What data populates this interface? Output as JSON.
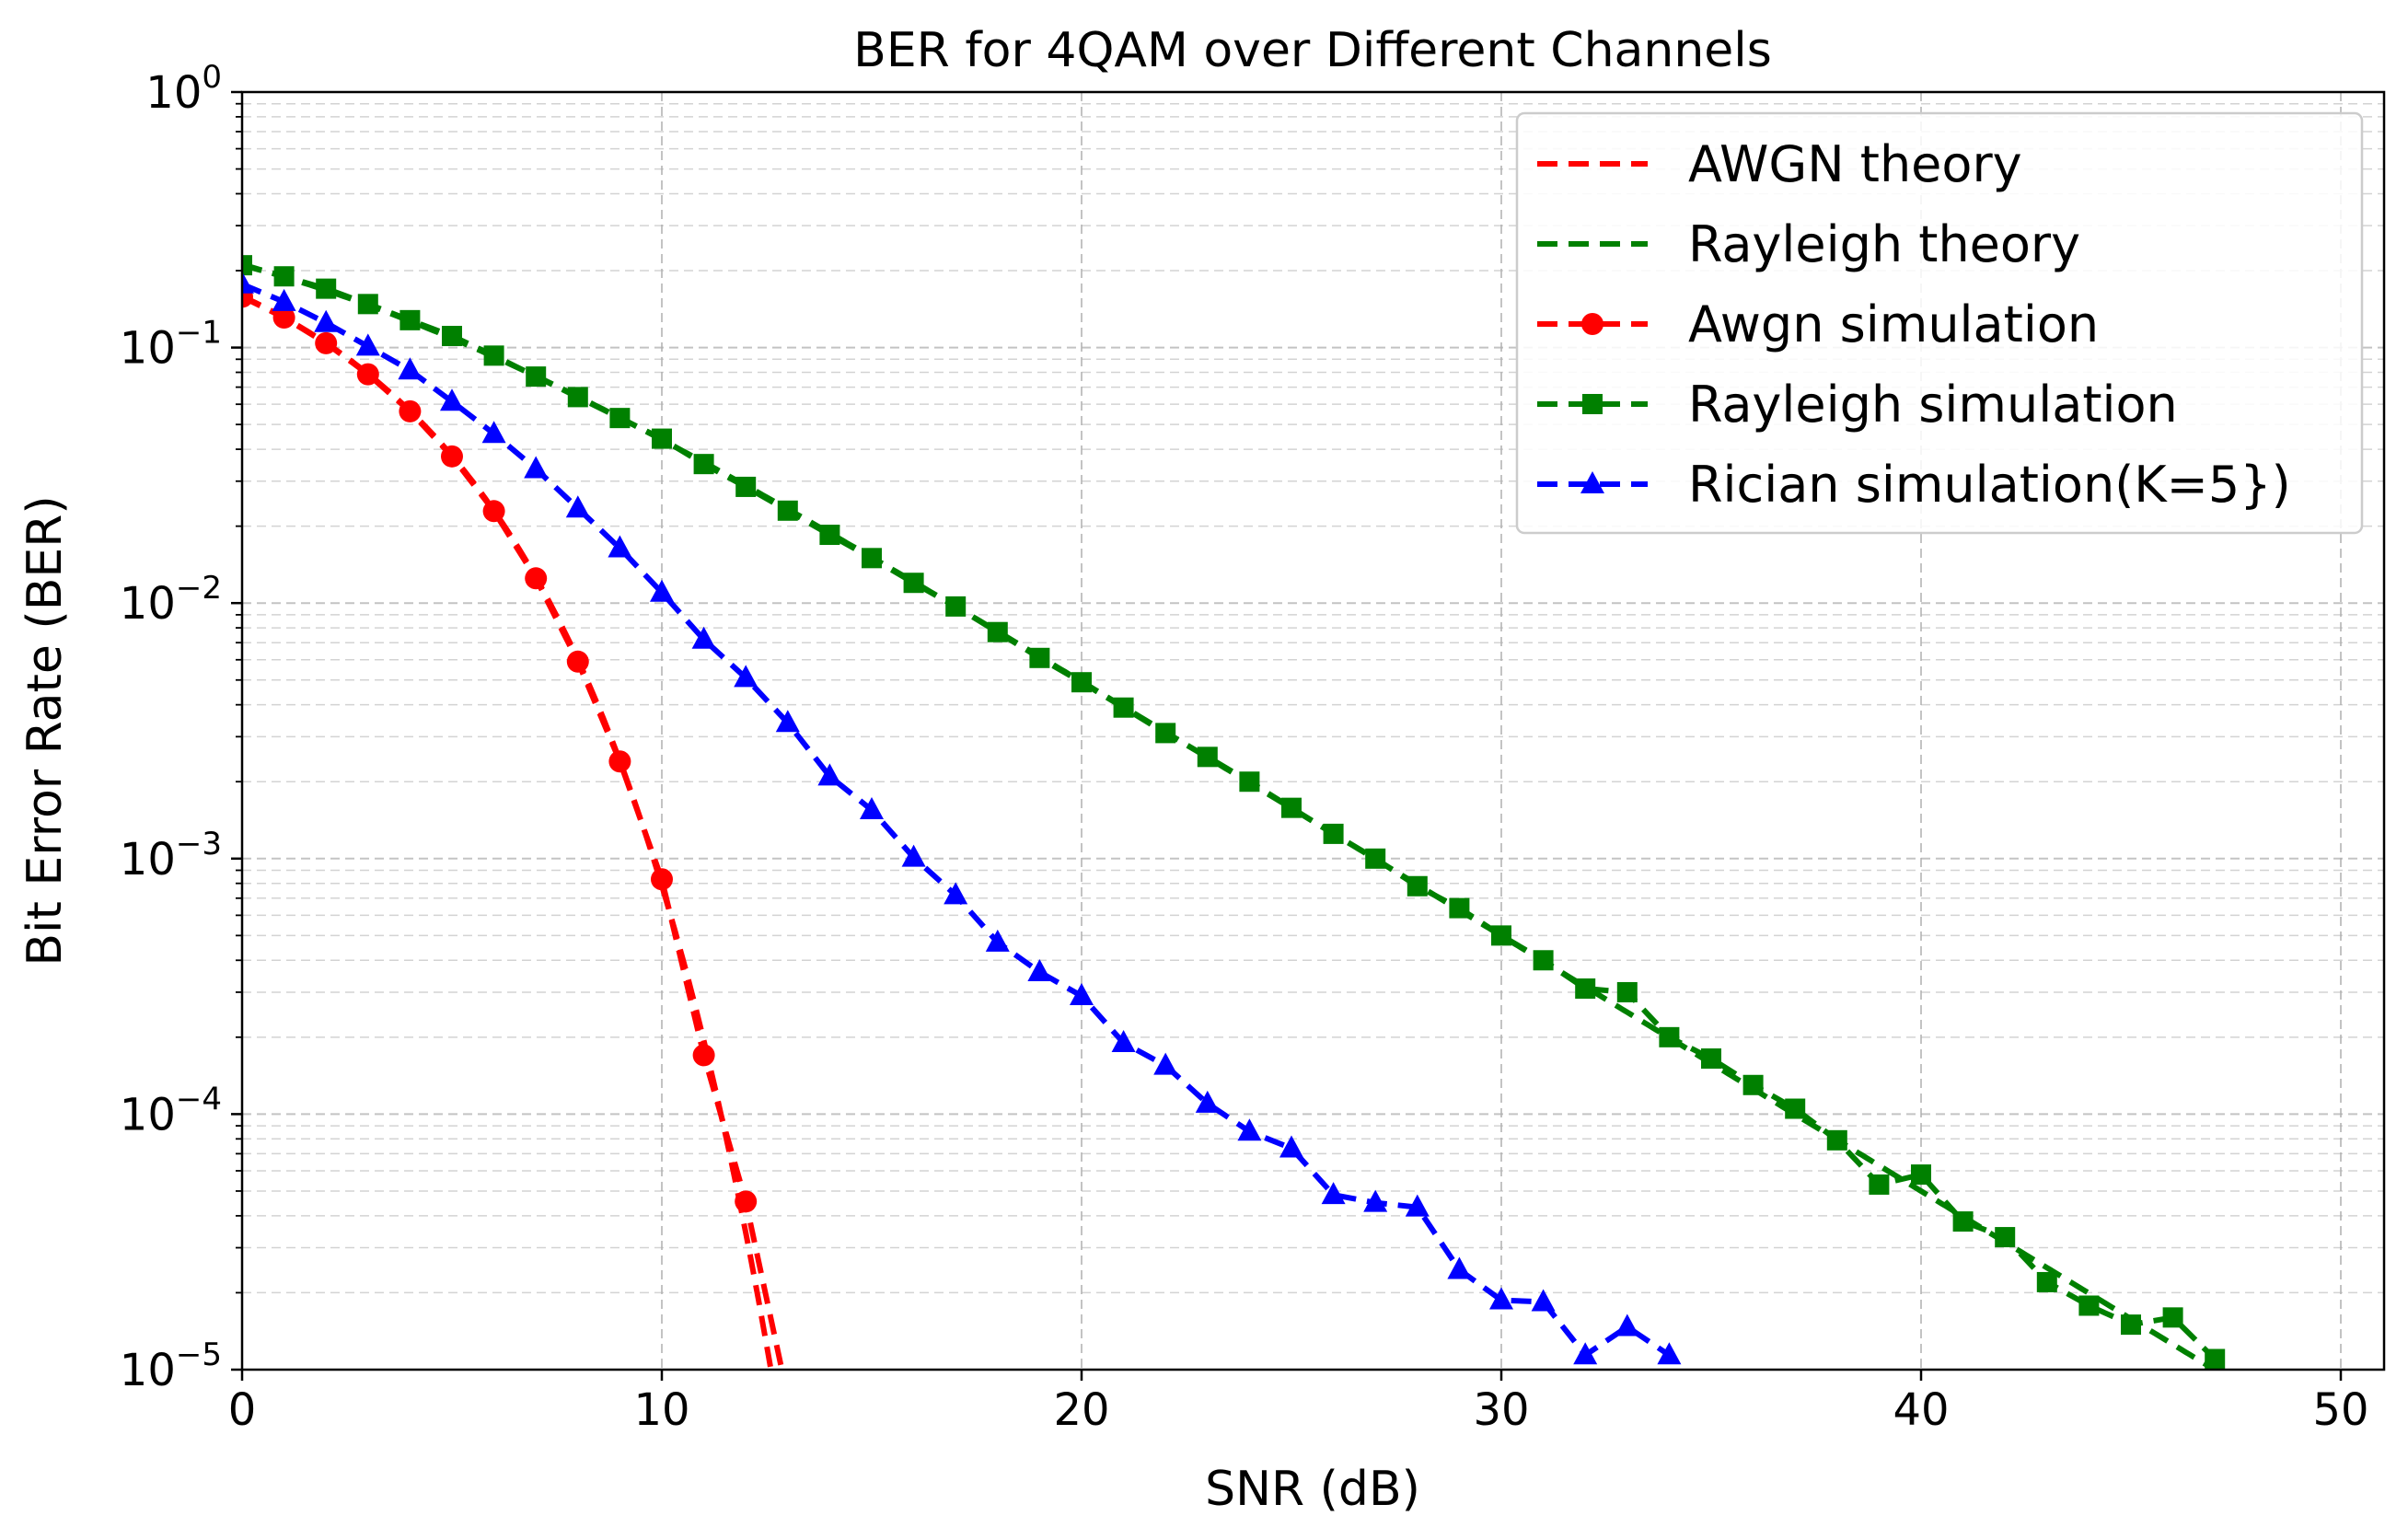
{
  "chart_data": {
    "type": "line",
    "title": "BER for 4QAM over Different Channels",
    "xlabel": "SNR (dB)",
    "ylabel": "Bit Error Rate (BER)",
    "xlim": [
      0,
      51
    ],
    "ylim": [
      1e-05,
      1
    ],
    "yscale": "log",
    "grid": true,
    "legend_position": "top-right",
    "xticks": [
      0,
      10,
      20,
      30,
      40,
      50
    ],
    "yticks": [
      {
        "base": "10",
        "exp": "0",
        "value": 1
      },
      {
        "base": "10",
        "exp": "−1",
        "value": 0.1
      },
      {
        "base": "10",
        "exp": "−2",
        "value": 0.01
      },
      {
        "base": "10",
        "exp": "−3",
        "value": 0.001
      },
      {
        "base": "10",
        "exp": "−4",
        "value": 0.0001
      },
      {
        "base": "10",
        "exp": "−5",
        "value": 1e-05
      }
    ],
    "series": [
      {
        "name": "AWGN theory",
        "color": "#ff0000",
        "marker": "none",
        "curve": "awgn_theory",
        "x_range": [
          0,
          13
        ]
      },
      {
        "name": "Rayleigh theory",
        "color": "#008000",
        "marker": "none",
        "curve": "rayleigh_theory",
        "x_range": [
          0,
          47
        ]
      },
      {
        "name": "Awgn simulation",
        "color": "#ff0000",
        "marker": "circle",
        "x": [
          0,
          1,
          2,
          3,
          4,
          5,
          6,
          7,
          8,
          9,
          10,
          11,
          12,
          13
        ],
        "y": [
          0.158,
          0.131,
          0.104,
          0.0786,
          0.0563,
          0.0375,
          0.0229,
          0.0125,
          0.0059,
          0.0024,
          0.00083,
          0.00017,
          4.55e-05,
          7.8e-06
        ]
      },
      {
        "name": "Rayleigh simulation",
        "color": "#008000",
        "marker": "square",
        "x": [
          0,
          1,
          2,
          3,
          4,
          5,
          6,
          7,
          8,
          9,
          10,
          11,
          12,
          13,
          14,
          15,
          16,
          17,
          18,
          19,
          20,
          21,
          22,
          23,
          24,
          25,
          26,
          27,
          28,
          29,
          30,
          31,
          32,
          33,
          34,
          35,
          36,
          37,
          38,
          39,
          40,
          41,
          42,
          43,
          44,
          45,
          46,
          47
        ],
        "y": [
          0.21,
          0.19,
          0.17,
          0.148,
          0.128,
          0.111,
          0.093,
          0.077,
          0.064,
          0.053,
          0.044,
          0.035,
          0.0285,
          0.023,
          0.0185,
          0.015,
          0.012,
          0.0097,
          0.0077,
          0.0061,
          0.0049,
          0.0039,
          0.0031,
          0.0025,
          0.002,
          0.00158,
          0.00125,
          0.001,
          0.00078,
          0.00064,
          0.0005,
          0.0004,
          0.00031,
          0.0003,
          0.0002,
          0.000165,
          0.00013,
          0.000105,
          7.9e-05,
          5.3e-05,
          5.8e-05,
          3.8e-05,
          3.3e-05,
          2.2e-05,
          1.78e-05,
          1.5e-05,
          1.6e-05,
          1.1e-05
        ]
      },
      {
        "name": "Rician simulation(K=5})",
        "color": "#0000ff",
        "marker": "triangle",
        "x": [
          0,
          1,
          2,
          3,
          4,
          5,
          6,
          7,
          8,
          9,
          10,
          11,
          12,
          13,
          14,
          15,
          16,
          17,
          18,
          19,
          20,
          21,
          22,
          23,
          24,
          25,
          26,
          27,
          28,
          29,
          30,
          31,
          32,
          33,
          34
        ],
        "y": [
          0.177,
          0.151,
          0.125,
          0.101,
          0.0815,
          0.0615,
          0.046,
          0.0335,
          0.0235,
          0.0164,
          0.011,
          0.0072,
          0.0051,
          0.0034,
          0.0021,
          0.00155,
          0.00101,
          0.00072,
          0.00047,
          0.00036,
          0.00029,
          0.00019,
          0.000155,
          0.00011,
          8.55e-05,
          7.35e-05,
          4.83e-05,
          4.5e-05,
          4.32e-05,
          2.46e-05,
          1.87e-05,
          1.84e-05,
          1.14e-05,
          1.47e-05,
          1.14e-05
        ]
      }
    ]
  }
}
